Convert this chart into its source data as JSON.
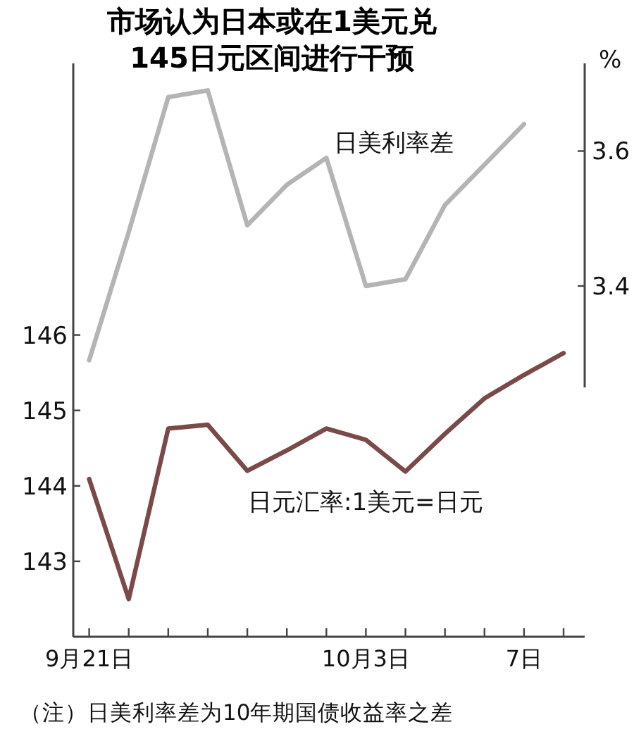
{
  "chart_data": {
    "type": "line",
    "title": "市场认为日本或在1美元兑145日元区间进行干预",
    "categories": [
      "9月21日",
      null,
      null,
      null,
      null,
      null,
      null,
      "10月3日",
      null,
      null,
      null,
      "7日",
      null
    ],
    "series": [
      {
        "name": "日美利率差",
        "color": "#b4b4b4",
        "axis": "y2",
        "values": [
          3.29,
          3.48,
          3.68,
          3.69,
          3.49,
          3.55,
          3.59,
          3.4,
          3.41,
          3.52,
          3.58,
          3.64,
          null
        ]
      },
      {
        "name": "日元汇率:1美元=日元",
        "color": "#7a4a48",
        "values": [
          144.09,
          142.5,
          144.76,
          144.81,
          144.2,
          144.47,
          144.76,
          144.61,
          144.19,
          144.69,
          145.16,
          145.47,
          145.76
        ]
      }
    ],
    "ylim": [
      142.0,
      149.6
    ],
    "yticks": [
      143,
      144,
      145,
      146
    ],
    "y2lim": [
      2.88,
      3.73
    ],
    "y2ticks": [
      3.4,
      3.6
    ],
    "y2label": "%",
    "grid": false,
    "legend": false,
    "marker": "none",
    "line_style": "solid",
    "annotations": [
      "（注）日美利率差为10年期国债收益率之差"
    ]
  }
}
